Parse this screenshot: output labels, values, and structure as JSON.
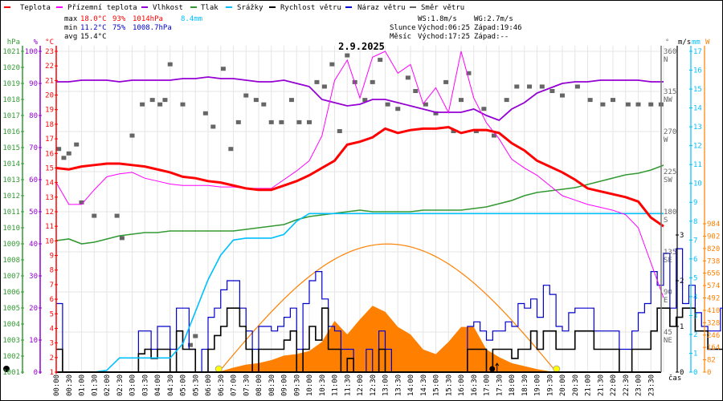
{
  "chart_data": {
    "type": "line",
    "title": "2.9.2025",
    "legend": [
      {
        "key": "temp",
        "label": "Teplota",
        "color": "#ff0000"
      },
      {
        "key": "ground",
        "label": "Přízemní teplota",
        "color": "#ff00ff"
      },
      {
        "key": "hum",
        "label": "Vlhkost",
        "color": "#9400d3"
      },
      {
        "key": "pres",
        "label": "Tlak",
        "color": "#339933"
      },
      {
        "key": "rain",
        "label": "Srážky",
        "color": "#00bfff"
      },
      {
        "key": "ws",
        "label": "Rychlost větru",
        "color": "#000000"
      },
      {
        "key": "wg",
        "label": "Náraz větru",
        "color": "#0000cc"
      },
      {
        "key": "wd",
        "label": "Směr větru",
        "color": "#666666"
      }
    ],
    "stats": {
      "max": {
        "label": "max",
        "temp": "18.0°C",
        "hum": "93%",
        "pres": "1014hPa",
        "rain": "8.4mm"
      },
      "min": {
        "label": "min",
        "temp": "11.2°C",
        "hum": "75%",
        "pres": "1008.7hPa"
      },
      "avg": {
        "label": "avg",
        "temp": "15.4°C"
      },
      "ws": "WS:1.8m/s",
      "wg": "WG:2.7m/s",
      "sun": {
        "label": "Slunce",
        "rise": "Východ:06:25",
        "set": "Západ:19:46"
      },
      "moon": {
        "label": "Měsíc",
        "rise": "Východ:17:25",
        "set": "Západ:--"
      }
    },
    "axes": {
      "hpa": {
        "unit": "hPa",
        "min": 1001,
        "max": 1021,
        "ticks": [
          "1001",
          "1002",
          "1003",
          "1004",
          "1005",
          "1006",
          "1007",
          "1008",
          "1009",
          "1010",
          "1011",
          "1012",
          "1013",
          "1014",
          "1015",
          "1016",
          "1017",
          "1018",
          "1019",
          "1020",
          "1021"
        ]
      },
      "pct": {
        "unit": "%",
        "min": 0,
        "max": 100,
        "ticks": [
          "0",
          "10",
          "20",
          "30",
          "40",
          "50",
          "60",
          "70",
          "80",
          "90",
          "100"
        ]
      },
      "temp": {
        "unit": "°C",
        "min": 1,
        "max": 23,
        "ticks": [
          "1",
          "2",
          "3",
          "4",
          "5",
          "6",
          "7",
          "8",
          "9",
          "10",
          "11",
          "12",
          "13",
          "14",
          "15",
          "16",
          "17",
          "18",
          "19",
          "20",
          "21",
          "22",
          "23"
        ]
      },
      "dir": {
        "unit": "°",
        "min": 0,
        "max": 360,
        "ticks": [
          "45",
          "90",
          "135",
          "180",
          "225",
          "270",
          "315",
          "360"
        ],
        "compass": [
          "NE",
          "E",
          "SE",
          "S",
          "SW",
          "W",
          "NW",
          "N"
        ]
      },
      "ms": {
        "unit": "m/s",
        "min": 0,
        "max": 7,
        "ticks": [
          "0",
          "1",
          "2",
          "3"
        ]
      },
      "mm": {
        "unit": "mm",
        "min": 0,
        "max": 17,
        "ticks": [
          "0",
          "1",
          "2",
          "3",
          "4",
          "5",
          "6",
          "7",
          "8",
          "9",
          "10",
          "11",
          "12",
          "13",
          "14",
          "15",
          "16",
          "17"
        ]
      },
      "w": {
        "unit": "W",
        "min": 0,
        "max": 984,
        "ticks": [
          "0",
          "82",
          "164",
          "246",
          "328",
          "410",
          "492",
          "574",
          "656",
          "738",
          "820",
          "902",
          "984"
        ]
      },
      "x": {
        "label": "čas",
        "ticks": [
          "00:00",
          "00:30",
          "01:00",
          "01:30",
          "02:00",
          "02:30",
          "03:00",
          "03:30",
          "04:00",
          "04:30",
          "05:00",
          "05:30",
          "06:00",
          "06:30",
          "07:00",
          "07:30",
          "08:00",
          "08:30",
          "09:00",
          "09:30",
          "10:00",
          "10:30",
          "11:00",
          "11:30",
          "12:00",
          "12:30",
          "13:00",
          "13:30",
          "14:00",
          "14:30",
          "15:00",
          "15:30",
          "16:00",
          "16:30",
          "17:00",
          "17:30",
          "18:00",
          "18:30",
          "19:00",
          "19:30",
          "20:00",
          "20:30",
          "21:00",
          "21:30",
          "22:00",
          "22:30",
          "23:00",
          "23:30"
        ]
      }
    },
    "x_hours_step": 0.5,
    "series": {
      "temp": [
        15.0,
        14.9,
        15.1,
        15.2,
        15.3,
        15.3,
        15.2,
        15.1,
        14.9,
        14.7,
        14.4,
        14.3,
        14.1,
        14.0,
        13.8,
        13.6,
        13.5,
        13.5,
        13.8,
        14.1,
        14.5,
        15.0,
        15.5,
        16.6,
        16.8,
        17.1,
        17.7,
        17.4,
        17.6,
        17.7,
        17.7,
        17.8,
        17.4,
        17.6,
        17.6,
        17.4,
        16.7,
        16.2,
        15.5,
        15.1,
        14.7,
        14.2,
        13.6,
        13.4,
        13.2,
        13.0,
        12.7,
        11.6,
        11.0
      ],
      "ground": [
        14.0,
        12.5,
        12.5,
        13.5,
        14.4,
        14.6,
        14.7,
        14.3,
        14.1,
        13.9,
        13.8,
        13.8,
        13.8,
        13.7,
        13.7,
        13.6,
        13.6,
        13.6,
        14.2,
        14.8,
        15.5,
        17.2,
        21.0,
        22.4,
        19.8,
        22.6,
        23.0,
        21.5,
        22.1,
        19.4,
        20.5,
        18.8,
        23.0,
        19.8,
        18.1,
        17.0,
        15.6,
        15.0,
        14.5,
        13.8,
        13.1,
        12.8,
        12.5,
        12.3,
        12.1,
        11.8,
        10.9,
        8.5,
        6.1
      ],
      "hum": [
        90.5,
        90.5,
        91,
        91,
        91,
        90.5,
        91,
        91,
        91,
        91,
        91.5,
        91.5,
        92,
        91.5,
        91.5,
        91,
        90.5,
        90.5,
        91,
        90,
        89,
        85,
        84,
        83,
        83.5,
        85,
        85,
        84,
        83,
        82,
        81,
        81,
        81,
        82,
        80,
        78.5,
        82,
        84,
        87,
        88.5,
        90,
        90.5,
        90.5,
        91,
        91,
        91,
        91,
        90.5,
        90.5
      ],
      "pres": [
        1009.2,
        1009.3,
        1009.0,
        1009.1,
        1009.3,
        1009.5,
        1009.6,
        1009.7,
        1009.7,
        1009.8,
        1009.8,
        1009.8,
        1009.8,
        1009.8,
        1009.8,
        1009.9,
        1010.0,
        1010.1,
        1010.2,
        1010.5,
        1010.7,
        1010.8,
        1010.9,
        1011.0,
        1011.1,
        1011.0,
        1011.0,
        1011.0,
        1011.0,
        1011.1,
        1011.1,
        1011.1,
        1011.1,
        1011.2,
        1011.3,
        1011.5,
        1011.7,
        1012.0,
        1012.2,
        1012.3,
        1012.4,
        1012.5,
        1012.7,
        1012.9,
        1013.1,
        1013.3,
        1013.4,
        1013.6,
        1013.9
      ],
      "rain": [
        0,
        0,
        0,
        0,
        0.1,
        0.75,
        0.75,
        0.75,
        0.75,
        0.75,
        1.5,
        3.2,
        4.9,
        6.2,
        7.0,
        7.1,
        7.1,
        7.1,
        7.3,
        8.0,
        8.4,
        8.4,
        8.4,
        8.4,
        8.4,
        8.4,
        8.4,
        8.4,
        8.4,
        8.4,
        8.4,
        8.4,
        8.4,
        8.4,
        8.4,
        8.4,
        8.4,
        8.4,
        8.4,
        8.4,
        8.4,
        8.4,
        8.4,
        8.4,
        8.4,
        8.4,
        8.4,
        8.4,
        8.4
      ],
      "solar": [
        0,
        0,
        0,
        0,
        0,
        0,
        0,
        0,
        0,
        0,
        0,
        0,
        0,
        5,
        30,
        50,
        60,
        80,
        110,
        120,
        140,
        200,
        340,
        250,
        350,
        440,
        400,
        300,
        250,
        150,
        120,
        200,
        300,
        300,
        150,
        100,
        60,
        40,
        20,
        5,
        0,
        0,
        0,
        0,
        0,
        0,
        0,
        0,
        0
      ],
      "solar_clear_sky": {
        "rise_hour": 6.42,
        "set_hour": 19.77,
        "max_W": 850
      }
    },
    "wind_step_hours": 0.25,
    "wind_speed": [
      0.5,
      0,
      0,
      0,
      0,
      0,
      0,
      0,
      0,
      0,
      0,
      0,
      0,
      0.4,
      0.5,
      0.3,
      0.5,
      0.5,
      0,
      0.9,
      0.5,
      0.5,
      0,
      0,
      0.5,
      0.8,
      1.0,
      1.4,
      1.4,
      1.0,
      0.5,
      0,
      0.5,
      0.5,
      0.5,
      0.5,
      0.7,
      0.9,
      0,
      0.5,
      1.0,
      0.7,
      1.4,
      0.5,
      0.5,
      0,
      0.3,
      0,
      0,
      0,
      0,
      0.5,
      0,
      0,
      0,
      0,
      0,
      0,
      0,
      0,
      0,
      0,
      0,
      0,
      0,
      0.5,
      0.5,
      0.5,
      0,
      0.5,
      0.5,
      0.5,
      0.3,
      0.5,
      0.5,
      0.9,
      0.5,
      0.9,
      0.9,
      0.5,
      0.5,
      0.5,
      0.9,
      0.9,
      0.9,
      0.5,
      0.5,
      0.5,
      0.5,
      0,
      0,
      0.5,
      0.5,
      0.5,
      0.9,
      1.4,
      1.4,
      1.0,
      1.2,
      1.4,
      1.4,
      0.9,
      0.9,
      0.5,
      0.5,
      0.5,
      0.9,
      0.5,
      0.9,
      0.5,
      0.5,
      0.5,
      0.5,
      0.3,
      0.3,
      0,
      0,
      0.5,
      0,
      0,
      0,
      0,
      0,
      0.5,
      0.7,
      0.5,
      0,
      0,
      0,
      0,
      0,
      0,
      0,
      0.5,
      0.5,
      0.5,
      0.5,
      0.5,
      0.5,
      0,
      0,
      0.5,
      0,
      0,
      0,
      0,
      0
    ],
    "wind_gust": [
      1.5,
      0,
      0,
      0,
      0,
      0,
      0,
      0,
      0,
      0,
      0,
      0,
      0,
      0.9,
      0.9,
      0.5,
      1.0,
      1.0,
      0.5,
      1.4,
      1.4,
      0.5,
      0,
      0.5,
      1.2,
      1.4,
      1.8,
      2.0,
      2.0,
      1.4,
      0.9,
      0.5,
      1.0,
      1.0,
      0.9,
      1.0,
      1.2,
      1.4,
      0.5,
      1.5,
      2.0,
      2.2,
      1.6,
      1.0,
      0.9,
      0.5,
      0.5,
      0,
      0,
      0.5,
      0,
      0.9,
      0.5,
      0,
      0,
      0,
      0,
      0,
      0,
      0,
      0,
      0,
      0,
      0,
      0,
      1.0,
      1.1,
      0.9,
      0.7,
      0.9,
      0.9,
      1.1,
      1.0,
      1.5,
      1.4,
      1.6,
      1.2,
      1.9,
      1.7,
      1.0,
      0.9,
      1.3,
      1.4,
      1.4,
      1.4,
      0.9,
      0.9,
      0.9,
      0.9,
      0.5,
      0.5,
      0.9,
      1.3,
      1.5,
      2.2,
      1.9,
      2.6,
      1.4,
      2.7,
      1.5,
      1.9,
      1.3,
      1.0,
      0.9,
      0.9,
      1.4,
      2.2,
      1.4,
      1.5,
      1.0,
      1.0,
      0.9,
      0.5,
      0.3,
      0.3,
      0,
      0,
      0.9,
      0,
      0,
      0,
      0,
      0.5,
      1.0,
      1.1,
      0.9,
      0,
      0,
      0,
      0,
      0,
      0,
      0,
      0.9,
      0.9,
      0.7,
      0.5,
      0.9,
      0.9,
      0,
      0,
      0.5,
      0,
      0,
      0,
      0,
      0
    ],
    "wind_dir": [
      [
        0.1,
        250
      ],
      [
        0.3,
        240
      ],
      [
        0.5,
        245
      ],
      [
        0.8,
        255
      ],
      [
        1.0,
        190
      ],
      [
        1.5,
        175
      ],
      [
        2.4,
        175
      ],
      [
        2.6,
        150
      ],
      [
        3.0,
        265
      ],
      [
        3.4,
        300
      ],
      [
        3.8,
        305
      ],
      [
        4.1,
        300
      ],
      [
        4.3,
        305
      ],
      [
        4.5,
        345
      ],
      [
        5.0,
        300
      ],
      [
        5.3,
        30
      ],
      [
        5.5,
        40
      ],
      [
        5.9,
        290
      ],
      [
        6.2,
        275
      ],
      [
        6.6,
        340
      ],
      [
        6.9,
        250
      ],
      [
        7.2,
        280
      ],
      [
        7.5,
        310
      ],
      [
        7.9,
        305
      ],
      [
        8.2,
        300
      ],
      [
        8.5,
        280
      ],
      [
        8.9,
        280
      ],
      [
        9.3,
        305
      ],
      [
        9.6,
        280
      ],
      [
        10.0,
        280
      ],
      [
        10.3,
        325
      ],
      [
        10.6,
        320
      ],
      [
        10.9,
        345
      ],
      [
        11.2,
        270
      ],
      [
        11.5,
        355
      ],
      [
        11.8,
        325
      ],
      [
        12.2,
        305
      ],
      [
        12.5,
        325
      ],
      [
        12.8,
        350
      ],
      [
        13.1,
        300
      ],
      [
        13.5,
        295
      ],
      [
        13.9,
        330
      ],
      [
        14.2,
        315
      ],
      [
        14.6,
        300
      ],
      [
        15.0,
        290
      ],
      [
        15.4,
        325
      ],
      [
        15.7,
        270
      ],
      [
        16.0,
        305
      ],
      [
        16.3,
        335
      ],
      [
        16.6,
        270
      ],
      [
        16.9,
        295
      ],
      [
        17.3,
        265
      ],
      [
        17.8,
        305
      ],
      [
        18.2,
        320
      ],
      [
        18.7,
        320
      ],
      [
        19.2,
        320
      ],
      [
        19.6,
        315
      ],
      [
        20.0,
        310
      ],
      [
        20.6,
        320
      ],
      [
        21.1,
        305
      ],
      [
        21.6,
        300
      ],
      [
        22.0,
        305
      ],
      [
        22.6,
        300
      ],
      [
        23.0,
        300
      ],
      [
        23.5,
        300
      ],
      [
        23.9,
        300
      ]
    ],
    "markers": {
      "sunrise_hour": 6.42,
      "sunset_hour": 19.77,
      "moonrise_hour": 17.42
    }
  }
}
